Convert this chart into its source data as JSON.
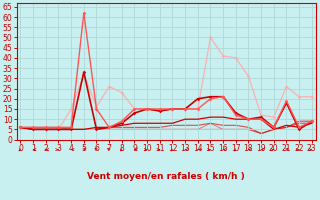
{
  "background_color": "#c8f0f0",
  "grid_color": "#b0d8d8",
  "xlabel": "Vent moyen/en rafales ( km/h )",
  "ylabel_ticks": [
    0,
    5,
    10,
    15,
    20,
    25,
    30,
    35,
    40,
    45,
    50,
    55,
    60,
    65
  ],
  "x_ticks": [
    0,
    1,
    2,
    3,
    4,
    5,
    6,
    7,
    8,
    9,
    10,
    11,
    12,
    13,
    14,
    15,
    16,
    17,
    18,
    19,
    20,
    21,
    22,
    23
  ],
  "xlim": [
    -0.3,
    23.3
  ],
  "ylim": [
    0,
    67
  ],
  "series": [
    {
      "y": [
        6,
        6,
        6,
        6,
        6,
        62,
        15,
        6,
        9,
        15,
        15,
        15,
        15,
        15,
        15,
        20,
        21,
        12,
        10,
        10,
        6,
        19,
        6,
        9
      ],
      "color": "#ff5555",
      "alpha": 1.0,
      "linewidth": 1.0,
      "marker": "D",
      "markersize": 1.8,
      "zorder": 5
    },
    {
      "y": [
        6,
        5,
        5,
        5,
        5,
        33,
        5,
        6,
        8,
        13,
        15,
        14,
        15,
        15,
        20,
        21,
        21,
        13,
        10,
        11,
        6,
        18,
        5,
        9
      ],
      "color": "#cc0000",
      "alpha": 1.0,
      "linewidth": 1.2,
      "marker": "D",
      "markersize": 1.8,
      "zorder": 4
    },
    {
      "y": [
        6,
        5,
        5,
        5,
        15,
        32,
        16,
        26,
        23,
        15,
        15,
        14,
        15,
        15,
        15,
        50,
        41,
        40,
        31,
        12,
        11,
        26,
        21,
        21
      ],
      "color": "#ffaaaa",
      "alpha": 0.9,
      "linewidth": 0.9,
      "marker": "D",
      "markersize": 1.8,
      "zorder": 2
    },
    {
      "y": [
        6,
        5,
        5,
        5,
        5,
        5,
        6,
        6,
        7,
        8,
        8,
        8,
        8,
        10,
        10,
        11,
        11,
        10,
        10,
        10,
        5,
        7,
        6,
        8
      ],
      "color": "#cc0000",
      "alpha": 1.0,
      "linewidth": 0.9,
      "marker": null,
      "markersize": 0,
      "zorder": 3
    },
    {
      "y": [
        6,
        5,
        5,
        5,
        5,
        5,
        5,
        6,
        6,
        6,
        6,
        6,
        7,
        7,
        7,
        8,
        7,
        7,
        6,
        3,
        5,
        6,
        8,
        8
      ],
      "color": "#cc0000",
      "alpha": 0.65,
      "linewidth": 0.8,
      "marker": null,
      "markersize": 0,
      "zorder": 1
    },
    {
      "y": [
        6,
        6,
        6,
        6,
        5,
        5,
        5,
        5,
        5,
        5,
        5,
        5,
        5,
        5,
        5,
        8,
        5,
        5,
        5,
        3,
        5,
        6,
        9,
        9
      ],
      "color": "#dd2222",
      "alpha": 0.5,
      "linewidth": 0.8,
      "marker": null,
      "markersize": 0,
      "zorder": 1
    },
    {
      "y": [
        6,
        5,
        5,
        5,
        5,
        5,
        5,
        5,
        5,
        5,
        5,
        5,
        5,
        5,
        5,
        5,
        5,
        5,
        5,
        3,
        5,
        6,
        9,
        9
      ],
      "color": "#cc0000",
      "alpha": 0.4,
      "linewidth": 0.8,
      "marker": null,
      "markersize": 0,
      "zorder": 1
    }
  ],
  "arrow_dirs": [
    225,
    270,
    270,
    90,
    270,
    45,
    315,
    315,
    225,
    270,
    90,
    90,
    225,
    270,
    270,
    90,
    270,
    225,
    270,
    270,
    90,
    45,
    90,
    90
  ],
  "xlabel_color": "#cc0000",
  "tick_color": "#cc0000",
  "label_fontsize": 6.5,
  "tick_fontsize": 5.5
}
